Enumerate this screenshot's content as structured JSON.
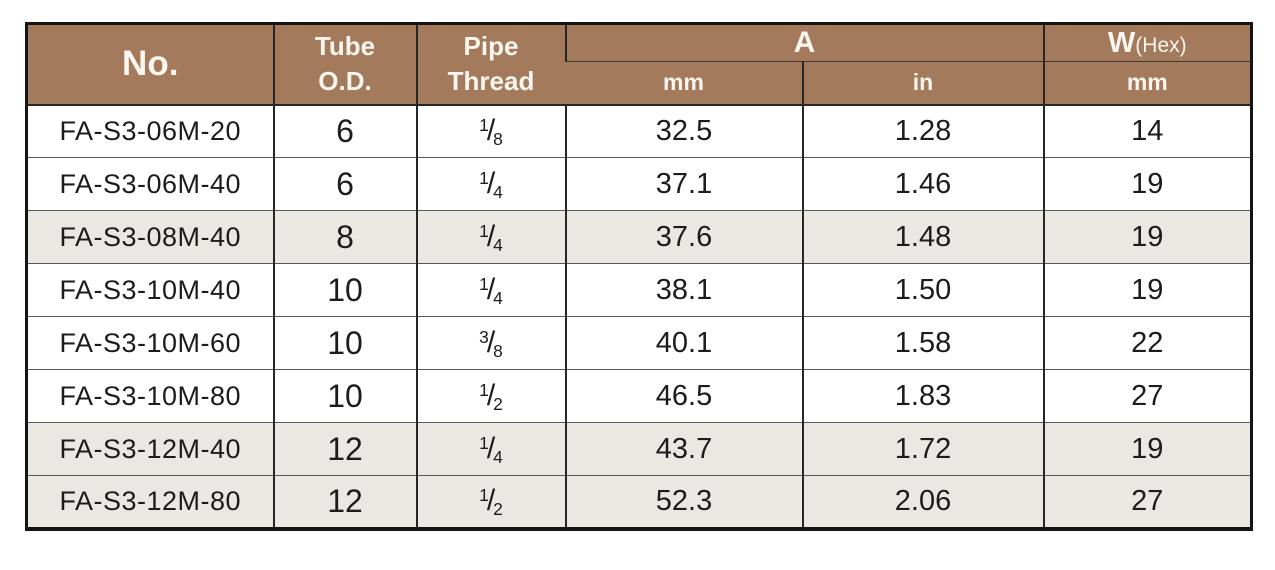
{
  "table": {
    "header": {
      "no": "No.",
      "tube_od": "Tube\nO.D.",
      "pipe_thread": "Pipe\nThread",
      "a": "A",
      "a_unit_mm": "mm",
      "a_unit_in": "in",
      "w": "W",
      "w_hex": "(Hex)",
      "w_unit_mm": "mm"
    },
    "rows": [
      {
        "no": "FA-S3-06M-20",
        "tube_od": "6",
        "pipe_thread": "1/8",
        "a_mm": "32.5",
        "a_in": "1.28",
        "w_mm": "14",
        "shaded": false
      },
      {
        "no": "FA-S3-06M-40",
        "tube_od": "6",
        "pipe_thread": "1/4",
        "a_mm": "37.1",
        "a_in": "1.46",
        "w_mm": "19",
        "shaded": false
      },
      {
        "no": "FA-S3-08M-40",
        "tube_od": "8",
        "pipe_thread": "1/4",
        "a_mm": "37.6",
        "a_in": "1.48",
        "w_mm": "19",
        "shaded": true
      },
      {
        "no": "FA-S3-10M-40",
        "tube_od": "10",
        "pipe_thread": "1/4",
        "a_mm": "38.1",
        "a_in": "1.50",
        "w_mm": "19",
        "shaded": false
      },
      {
        "no": "FA-S3-10M-60",
        "tube_od": "10",
        "pipe_thread": "3/8",
        "a_mm": "40.1",
        "a_in": "1.58",
        "w_mm": "22",
        "shaded": false
      },
      {
        "no": "FA-S3-10M-80",
        "tube_od": "10",
        "pipe_thread": "1/2",
        "a_mm": "46.5",
        "a_in": "1.83",
        "w_mm": "27",
        "shaded": false
      },
      {
        "no": "FA-S3-12M-40",
        "tube_od": "12",
        "pipe_thread": "1/4",
        "a_mm": "43.7",
        "a_in": "1.72",
        "w_mm": "19",
        "shaded": true
      },
      {
        "no": "FA-S3-12M-80",
        "tube_od": "12",
        "pipe_thread": "1/2",
        "a_mm": "52.3",
        "a_in": "2.06",
        "w_mm": "27",
        "shaded": true
      }
    ],
    "colors": {
      "header_bg": "#a37a5c",
      "header_text": "#faf6ef",
      "shaded_row_bg": "#ebe8e3",
      "outer_border": "#141414",
      "row_line": "#5a5a5a"
    }
  }
}
